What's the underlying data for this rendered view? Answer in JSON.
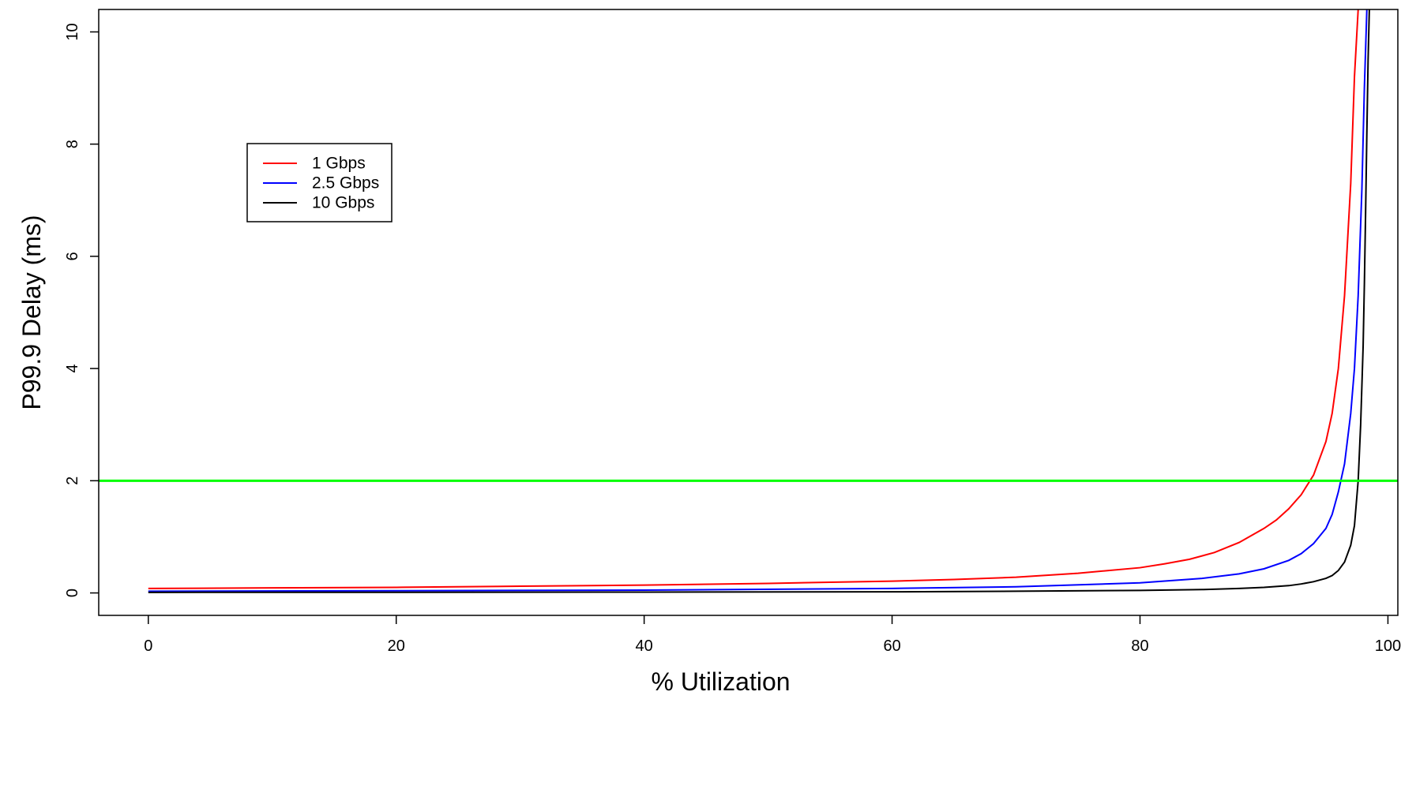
{
  "chart_data": {
    "type": "line",
    "title": "",
    "xlabel": "% Utilization",
    "ylabel": "P99.9 Delay (ms)",
    "xlim": [
      -4,
      100.8
    ],
    "ylim": [
      -0.4,
      10.4
    ],
    "x_ticks": [
      0,
      20,
      40,
      60,
      80,
      100
    ],
    "y_ticks": [
      0,
      2,
      4,
      6,
      8,
      10
    ],
    "grid": false,
    "legend_position": "upper-left",
    "series": [
      {
        "name": "1 Gbps",
        "color": "#ff0000",
        "x": [
          0,
          10,
          20,
          30,
          40,
          50,
          55,
          60,
          65,
          70,
          75,
          80,
          82,
          84,
          86,
          88,
          90,
          91,
          92,
          93,
          94,
          95,
          95.5,
          96,
          96.5,
          97,
          97.3,
          97.6
        ],
        "y": [
          0.08,
          0.09,
          0.1,
          0.12,
          0.14,
          0.17,
          0.19,
          0.21,
          0.24,
          0.28,
          0.35,
          0.45,
          0.52,
          0.6,
          0.72,
          0.9,
          1.15,
          1.3,
          1.5,
          1.75,
          2.1,
          2.7,
          3.2,
          4.0,
          5.3,
          7.3,
          9.2,
          10.4
        ]
      },
      {
        "name": "2.5 Gbps",
        "color": "#0000ff",
        "x": [
          0,
          20,
          40,
          60,
          70,
          80,
          85,
          88,
          90,
          92,
          93,
          94,
          95,
          95.5,
          96,
          96.5,
          97,
          97.3,
          97.6,
          97.9,
          98.1,
          98.3
        ],
        "y": [
          0.03,
          0.04,
          0.05,
          0.08,
          0.11,
          0.18,
          0.26,
          0.34,
          0.43,
          0.58,
          0.7,
          0.88,
          1.15,
          1.4,
          1.8,
          2.3,
          3.2,
          4.0,
          5.3,
          7.2,
          9.0,
          10.4
        ]
      },
      {
        "name": "10 Gbps",
        "color": "#000000",
        "x": [
          0,
          20,
          40,
          60,
          70,
          80,
          85,
          88,
          90,
          92,
          93,
          94,
          95,
          95.5,
          96,
          96.5,
          97,
          97.3,
          97.6,
          97.8,
          98,
          98.1,
          98.2,
          98.3,
          98.4,
          98.5
        ],
        "y": [
          0.01,
          0.012,
          0.015,
          0.02,
          0.03,
          0.045,
          0.06,
          0.08,
          0.1,
          0.13,
          0.16,
          0.2,
          0.26,
          0.31,
          0.4,
          0.55,
          0.85,
          1.2,
          2.0,
          3.0,
          4.4,
          5.5,
          6.8,
          8.2,
          9.5,
          10.4
        ]
      },
      {
        "name": "",
        "color": "#00ff00",
        "x": [
          -4,
          100.8
        ],
        "y": [
          2,
          2
        ]
      }
    ]
  }
}
